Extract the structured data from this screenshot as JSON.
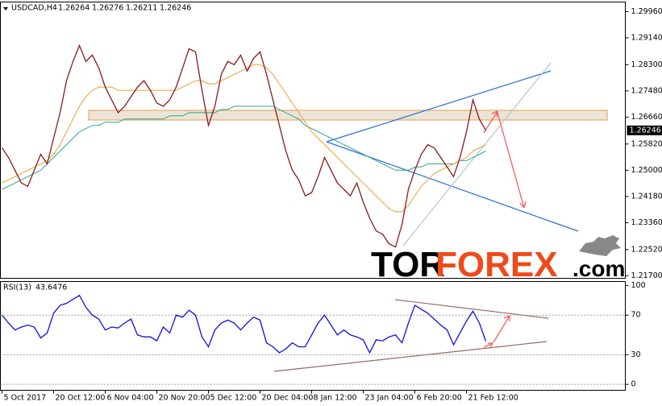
{
  "chart_data": [
    {
      "type": "line",
      "symbol": "USDCAD,H4",
      "last_bar": {
        "open": 1.26264,
        "high": 1.26276,
        "low": 1.26211
      },
      "ylim": [
        1.2162,
        1.3026
      ],
      "xlim": [
        -0.25,
        96.625
      ],
      "yticks": [
        {
          "value": 1.2996,
          "label": "1.29960"
        },
        {
          "value": 1.2914,
          "label": "1.29140"
        },
        {
          "value": 1.283,
          "label": "1.28300"
        },
        {
          "value": 1.2748,
          "label": "1.27480"
        },
        {
          "value": 1.2666,
          "label": "1.26660"
        },
        {
          "value": 1.2582,
          "label": "1.25820"
        },
        {
          "value": 1.25,
          "label": "1.25000"
        },
        {
          "value": 1.2418,
          "label": "1.24180"
        },
        {
          "value": 1.2336,
          "label": "1.23360"
        },
        {
          "value": 1.2252,
          "label": "1.22520"
        },
        {
          "value": 1.217,
          "label": "1.21700"
        }
      ],
      "xticks": [
        {
          "value": 0,
          "label": "5 Oct 2017"
        },
        {
          "value": 8,
          "label": "20 Oct 12:00"
        },
        {
          "value": 16,
          "label": "6 Nov 04:00"
        },
        {
          "value": 24,
          "label": "20 Nov 20:00"
        },
        {
          "value": 32,
          "label": "5 Dec 12:00"
        },
        {
          "value": 40,
          "label": "20 Dec 04:00"
        },
        {
          "value": 48,
          "label": "8 Jan 12:00"
        },
        {
          "value": 56,
          "label": "23 Jan 04:00"
        },
        {
          "value": 64,
          "label": "6 Feb 20:00"
        },
        {
          "value": 72,
          "label": "21 Feb 12:00"
        }
      ],
      "series": [
        {
          "color": "#2ca58d",
          "values": [
            1.244,
            1.245,
            1.246,
            1.247,
            1.248,
            1.249,
            1.25,
            1.252,
            1.254,
            1.256,
            1.258,
            1.26,
            1.262,
            1.263,
            1.264,
            1.264,
            1.265,
            1.265,
            1.265,
            1.266,
            1.266,
            1.266,
            1.266,
            1.266,
            1.266,
            1.266,
            1.267,
            1.267,
            1.267,
            1.268,
            1.268,
            1.268,
            1.268,
            1.268,
            1.269,
            1.269,
            1.27,
            1.27,
            1.27,
            1.27,
            1.27,
            1.27,
            1.27,
            1.269,
            1.268,
            1.267,
            1.266,
            1.264,
            1.263,
            1.262,
            1.261,
            1.26,
            1.259,
            1.258,
            1.257,
            1.256,
            1.255,
            1.254,
            1.253,
            1.252,
            1.251,
            1.25,
            1.25,
            1.25,
            1.251,
            1.251,
            1.252,
            1.252,
            1.252,
            1.252,
            1.252,
            1.253,
            1.253,
            1.254,
            1.255,
            1.256
          ]
        },
        {
          "color": "#e8a030",
          "values": [
            1.246,
            1.247,
            1.248,
            1.249,
            1.25,
            1.251,
            1.252,
            1.253,
            1.255,
            1.258,
            1.262,
            1.266,
            1.27,
            1.273,
            1.275,
            1.276,
            1.276,
            1.276,
            1.275,
            1.275,
            1.275,
            1.275,
            1.275,
            1.275,
            1.275,
            1.275,
            1.275,
            1.275,
            1.276,
            1.277,
            1.278,
            1.278,
            1.277,
            1.277,
            1.278,
            1.279,
            1.28,
            1.281,
            1.282,
            1.283,
            1.283,
            1.282,
            1.28,
            1.277,
            1.274,
            1.271,
            1.268,
            1.265,
            1.262,
            1.26,
            1.258,
            1.256,
            1.254,
            1.252,
            1.25,
            1.248,
            1.246,
            1.244,
            1.242,
            1.24,
            1.238,
            1.237,
            1.237,
            1.239,
            1.242,
            1.245,
            1.247,
            1.249,
            1.25,
            1.251,
            1.252,
            1.253,
            1.254,
            1.256,
            1.257,
            1.258
          ]
        },
        {
          "color": "#8b1a1a",
          "values": [
            1.257,
            1.254,
            1.25,
            1.246,
            1.245,
            1.25,
            1.255,
            1.252,
            1.26,
            1.268,
            1.278,
            1.284,
            1.289,
            1.284,
            1.286,
            1.282,
            1.276,
            1.272,
            1.268,
            1.27,
            1.273,
            1.276,
            1.278,
            1.275,
            1.271,
            1.27,
            1.272,
            1.276,
            1.282,
            1.288,
            1.287,
            1.275,
            1.264,
            1.27,
            1.28,
            1.284,
            1.283,
            1.286,
            1.281,
            1.285,
            1.287,
            1.28,
            1.272,
            1.264,
            1.256,
            1.25,
            1.247,
            1.242,
            1.243,
            1.248,
            1.254,
            1.25,
            1.246,
            1.244,
            1.242,
            1.246,
            1.24,
            1.235,
            1.231,
            1.23,
            1.227,
            1.226,
            1.233,
            1.244,
            1.25,
            1.255,
            1.258,
            1.257,
            1.254,
            1.251,
            1.248,
            1.254,
            1.262,
            1.272,
            1.266,
            1.26246
          ]
        }
      ],
      "watermark": [
        "TOR",
        "FOREX",
        ".com"
      ]
    },
    {
      "type": "line",
      "label": "RSI(13)",
      "ylim": [
        -6,
        104
      ],
      "xlim": [
        -0.25,
        96.625
      ],
      "yticks": [
        0,
        30,
        70,
        100
      ],
      "series": [
        {
          "color": "#1010e0",
          "values": [
            70,
            62,
            55,
            58,
            60,
            58,
            47,
            52,
            72,
            80,
            82,
            86,
            90,
            78,
            70,
            66,
            55,
            58,
            57,
            62,
            66,
            50,
            48,
            48,
            44,
            58,
            52,
            70,
            68,
            75,
            70,
            48,
            38,
            55,
            62,
            65,
            62,
            55,
            62,
            68,
            65,
            42,
            38,
            32,
            36,
            42,
            38,
            38,
            50,
            62,
            70,
            60,
            50,
            55,
            50,
            48,
            45,
            32,
            45,
            44,
            48,
            50,
            42,
            62,
            80,
            76,
            72,
            66,
            60,
            55,
            40,
            52,
            64,
            74,
            62,
            43.6476
          ]
        }
      ]
    }
  ]
}
